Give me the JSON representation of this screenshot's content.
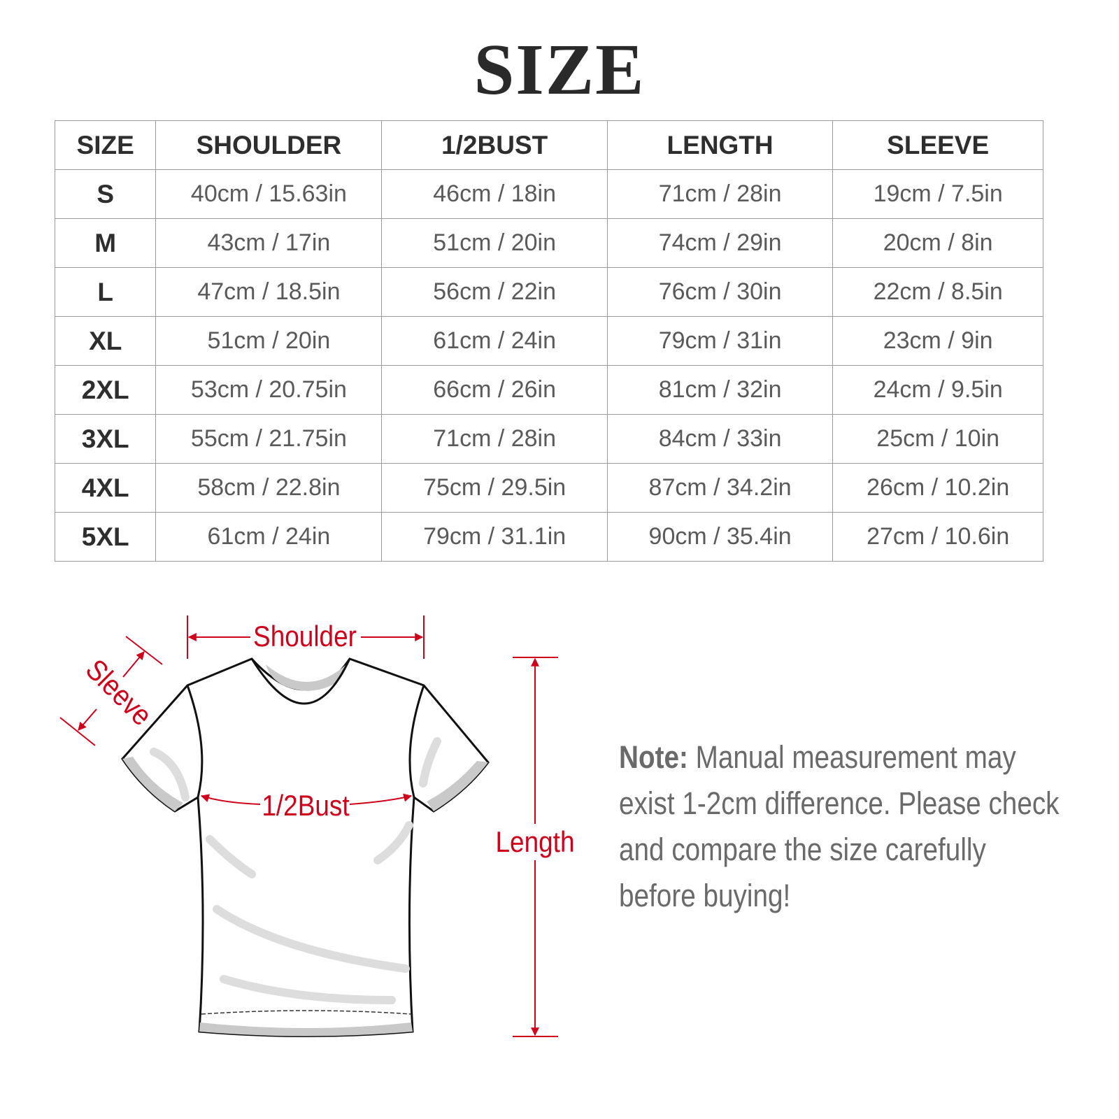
{
  "title": "SIZE",
  "table": {
    "headers": [
      "SIZE",
      "SHOULDER",
      "1/2BUST",
      "LENGTH",
      "SLEEVE"
    ],
    "rows": [
      [
        "S",
        "40cm / 15.63in",
        "46cm / 18in",
        "71cm / 28in",
        "19cm / 7.5in"
      ],
      [
        "M",
        "43cm / 17in",
        "51cm / 20in",
        "74cm / 29in",
        "20cm / 8in"
      ],
      [
        "L",
        "47cm / 18.5in",
        "56cm / 22in",
        "76cm / 30in",
        "22cm / 8.5in"
      ],
      [
        "XL",
        "51cm / 20in",
        "61cm / 24in",
        "79cm / 31in",
        "23cm / 9in"
      ],
      [
        "2XL",
        "53cm / 20.75in",
        "66cm / 26in",
        "81cm / 32in",
        "24cm / 9.5in"
      ],
      [
        "3XL",
        "55cm / 21.75in",
        "71cm / 28in",
        "84cm / 33in",
        "25cm / 10in"
      ],
      [
        "4XL",
        "58cm / 22.8in",
        "75cm / 29.5in",
        "87cm / 34.2in",
        "26cm / 10.2in"
      ],
      [
        "5XL",
        "61cm / 24in",
        "79cm / 31.1in",
        "90cm / 35.4in",
        "27cm / 10.6in"
      ]
    ]
  },
  "diagram": {
    "shoulder_label": "Shoulder",
    "sleeve_label": "Sleeve",
    "bust_label": "1/2Bust",
    "length_label": "Length",
    "accent_color": "#d0021b"
  },
  "note": {
    "label": "Note:",
    "text": " Manual measurement may exist 1-2cm difference. Please check and compare the size carefully before buying!"
  }
}
